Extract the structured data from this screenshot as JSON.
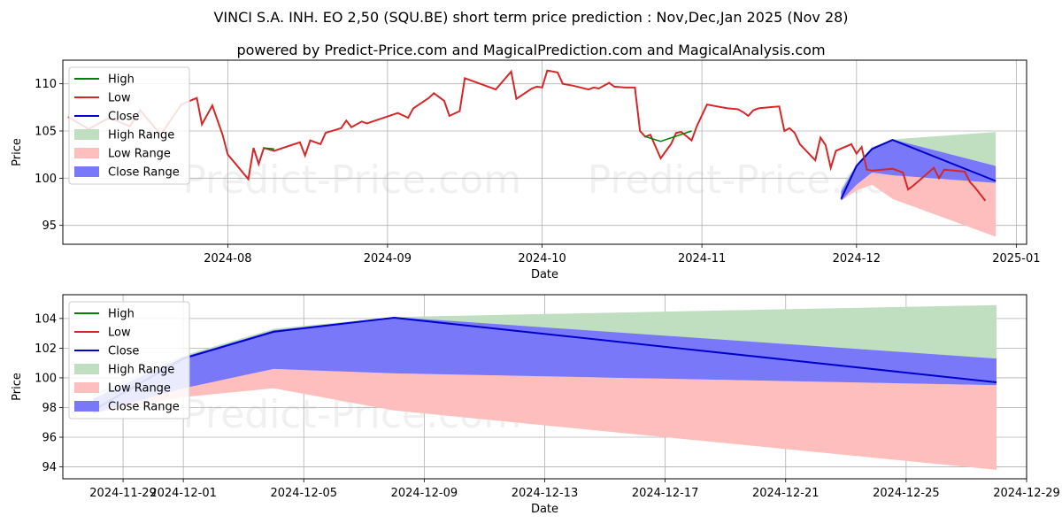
{
  "title": "VINCI S.A. INH. EO 2,50 (SQU.BE) short term price prediction : Nov,Dec,Jan 2025 (Nov 28)",
  "subtitle": "powered by Predict-Price.com and MagicalPrediction.com and MagicalAnalysis.com",
  "watermark": "Predict-Price.com",
  "colors": {
    "high": "#008000",
    "low": "#d62728",
    "close": "#0000cc",
    "high_range": "#c0dfc0",
    "low_range": "#ffbebe",
    "close_range": "#7878f8",
    "grid": "#b0b0b0"
  },
  "legend": [
    "High",
    "Low",
    "Close",
    "High Range",
    "Low Range",
    "Close Range"
  ],
  "chart_data": [
    {
      "type": "line",
      "name": "historical",
      "xlabel": "Date",
      "ylabel": "Price",
      "xlim": [
        "2024-06-30",
        "2025-01-03"
      ],
      "ylim": [
        93,
        112.5
      ],
      "xticks": [
        {
          "date": "2024-08-01",
          "label": "2024-08"
        },
        {
          "date": "2024-09-01",
          "label": "2024-09"
        },
        {
          "date": "2024-10-01",
          "label": "2024-10"
        },
        {
          "date": "2024-11-01",
          "label": "2024-11"
        },
        {
          "date": "2024-12-01",
          "label": "2024-12"
        },
        {
          "date": "2025-01-01",
          "label": "2025-01"
        }
      ],
      "yticks": [
        95,
        100,
        105,
        110
      ],
      "history_low": [
        [
          "2024-07-01",
          106.5
        ],
        [
          "2024-07-05",
          105.2
        ],
        [
          "2024-07-09",
          106.4
        ],
        [
          "2024-07-13",
          105.5
        ],
        [
          "2024-07-15",
          107.2
        ],
        [
          "2024-07-19",
          104.6
        ],
        [
          "2024-07-23",
          107.8
        ],
        [
          "2024-07-26",
          108.5
        ],
        [
          "2024-07-27",
          105.7
        ],
        [
          "2024-07-29",
          107.7
        ],
        [
          "2024-07-31",
          104.6
        ],
        [
          "2024-08-01",
          102.5
        ],
        [
          "2024-08-05",
          99.9
        ],
        [
          "2024-08-06",
          103.2
        ],
        [
          "2024-08-07",
          101.5
        ],
        [
          "2024-08-08",
          103.2
        ],
        [
          "2024-08-10",
          102.9
        ],
        [
          "2024-08-15",
          103.8
        ],
        [
          "2024-08-16",
          102.4
        ],
        [
          "2024-08-17",
          104.0
        ],
        [
          "2024-08-19",
          103.6
        ],
        [
          "2024-08-20",
          104.8
        ],
        [
          "2024-08-23",
          105.3
        ],
        [
          "2024-08-24",
          106.1
        ],
        [
          "2024-08-25",
          105.4
        ],
        [
          "2024-08-27",
          106.0
        ],
        [
          "2024-08-28",
          105.8
        ],
        [
          "2024-09-03",
          106.9
        ],
        [
          "2024-09-05",
          106.4
        ],
        [
          "2024-09-06",
          107.4
        ],
        [
          "2024-09-09",
          108.5
        ],
        [
          "2024-09-10",
          109.0
        ],
        [
          "2024-09-12",
          108.2
        ],
        [
          "2024-09-13",
          106.6
        ],
        [
          "2024-09-15",
          107.1
        ],
        [
          "2024-09-16",
          110.6
        ],
        [
          "2024-09-22",
          109.4
        ],
        [
          "2024-09-25",
          111.3
        ],
        [
          "2024-09-26",
          108.4
        ],
        [
          "2024-09-29",
          109.5
        ],
        [
          "2024-09-30",
          109.7
        ],
        [
          "2024-10-01",
          109.6
        ],
        [
          "2024-10-02",
          111.4
        ],
        [
          "2024-10-04",
          111.2
        ],
        [
          "2024-10-05",
          110.0
        ],
        [
          "2024-10-07",
          109.8
        ],
        [
          "2024-10-10",
          109.4
        ],
        [
          "2024-10-11",
          109.6
        ],
        [
          "2024-10-12",
          109.5
        ],
        [
          "2024-10-14",
          110.1
        ],
        [
          "2024-10-15",
          109.7
        ],
        [
          "2024-10-17",
          109.6
        ],
        [
          "2024-10-19",
          109.6
        ],
        [
          "2024-10-20",
          105.0
        ],
        [
          "2024-10-21",
          104.4
        ],
        [
          "2024-10-22",
          104.6
        ],
        [
          "2024-10-24",
          102.1
        ],
        [
          "2024-10-26",
          103.6
        ],
        [
          "2024-10-27",
          104.8
        ],
        [
          "2024-10-28",
          104.9
        ],
        [
          "2024-10-30",
          104.0
        ],
        [
          "2024-10-31",
          105.5
        ],
        [
          "2024-11-02",
          107.8
        ],
        [
          "2024-11-04",
          107.6
        ],
        [
          "2024-11-06",
          107.4
        ],
        [
          "2024-11-08",
          107.3
        ],
        [
          "2024-11-09",
          107.0
        ],
        [
          "2024-11-10",
          106.6
        ],
        [
          "2024-11-11",
          107.2
        ],
        [
          "2024-11-12",
          107.4
        ],
        [
          "2024-11-14",
          107.5
        ],
        [
          "2024-11-16",
          107.6
        ],
        [
          "2024-11-17",
          105.0
        ],
        [
          "2024-11-18",
          105.3
        ],
        [
          "2024-11-19",
          104.8
        ],
        [
          "2024-11-20",
          103.6
        ],
        [
          "2024-11-23",
          101.9
        ],
        [
          "2024-11-24",
          104.3
        ],
        [
          "2024-11-25",
          103.5
        ],
        [
          "2024-11-26",
          101.1
        ],
        [
          "2024-11-27",
          102.9
        ],
        [
          "2024-11-30",
          103.6
        ],
        [
          "2024-12-01",
          102.6
        ],
        [
          "2024-12-02",
          103.3
        ],
        [
          "2024-12-03",
          100.9
        ],
        [
          "2024-12-04",
          100.8
        ],
        [
          "2024-12-06",
          100.9
        ],
        [
          "2024-12-08",
          101.0
        ],
        [
          "2024-12-10",
          100.6
        ],
        [
          "2024-12-11",
          98.8
        ],
        [
          "2024-12-12",
          99.2
        ],
        [
          "2024-12-16",
          101.1
        ],
        [
          "2024-12-17",
          100.0
        ],
        [
          "2024-12-18",
          100.9
        ],
        [
          "2024-12-22",
          100.7
        ],
        [
          "2024-12-23",
          99.6
        ],
        [
          "2024-12-24",
          99.0
        ],
        [
          "2024-12-26",
          97.6
        ]
      ],
      "history_high": [
        [
          "2024-08-08",
          103.2
        ],
        [
          "2024-08-10",
          103.1
        ],
        [
          "2024-10-21",
          104.4
        ],
        [
          "2024-10-24",
          103.9
        ],
        [
          "2024-10-30",
          105.0
        ]
      ]
    },
    {
      "type": "area",
      "name": "forecast",
      "xlabel": "Date",
      "ylabel": "Price",
      "xlim": [
        "2024-11-27",
        "2024-12-29"
      ],
      "ylim": [
        93.2,
        105.6
      ],
      "xticks": [
        {
          "date": "2024-11-29",
          "label": "2024-11-29"
        },
        {
          "date": "2024-12-01",
          "label": "2024-12-01"
        },
        {
          "date": "2024-12-05",
          "label": "2024-12-05"
        },
        {
          "date": "2024-12-09",
          "label": "2024-12-09"
        },
        {
          "date": "2024-12-13",
          "label": "2024-12-13"
        },
        {
          "date": "2024-12-17",
          "label": "2024-12-17"
        },
        {
          "date": "2024-12-21",
          "label": "2024-12-21"
        },
        {
          "date": "2024-12-25",
          "label": "2024-12-25"
        },
        {
          "date": "2024-12-29",
          "label": "2024-12-29"
        }
      ],
      "yticks": [
        94,
        96,
        98,
        100,
        102,
        104
      ],
      "x": [
        "2024-11-28",
        "2024-12-01",
        "2024-12-04",
        "2024-12-08",
        "2024-12-28"
      ],
      "close": [
        97.8,
        101.3,
        103.1,
        104.05,
        99.7
      ],
      "high_range_upper": [
        98.9,
        101.5,
        103.3,
        104.1,
        104.9
      ],
      "high_range_lower": [
        98.7,
        101.3,
        103.1,
        104.05,
        101.3
      ],
      "low_range_upper": [
        98.0,
        99.6,
        100.6,
        100.3,
        99.5
      ],
      "low_range_lower": [
        97.6,
        98.7,
        99.3,
        97.8,
        93.8
      ],
      "close_range_upper": [
        98.6,
        101.4,
        103.2,
        104.1,
        101.3
      ],
      "close_range_lower": [
        97.6,
        99.3,
        100.6,
        100.3,
        99.5
      ]
    }
  ]
}
